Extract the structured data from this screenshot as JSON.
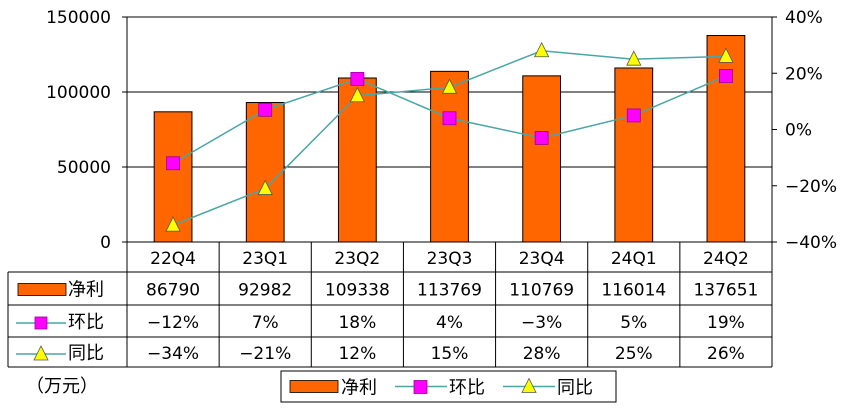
{
  "chart_data": {
    "type": "bar",
    "categories": [
      "22Q4",
      "23Q1",
      "23Q2",
      "23Q3",
      "23Q4",
      "24Q1",
      "24Q2"
    ],
    "series": [
      {
        "name": "净利",
        "type": "bar",
        "axis": "left",
        "color": "#ff6600",
        "values": [
          86790,
          92982,
          109338,
          113769,
          110769,
          116014,
          137651
        ],
        "labels": [
          "86790",
          "92982",
          "109338",
          "113769",
          "110769",
          "116014",
          "137651"
        ]
      },
      {
        "name": "环比",
        "type": "line",
        "axis": "right",
        "color": "#4aa6a6",
        "marker": "square",
        "marker_color": "#ff00ff",
        "values": [
          -12,
          7,
          18,
          4,
          -3,
          5,
          19
        ],
        "labels": [
          "−12%",
          "7%",
          "18%",
          "4%",
          "−3%",
          "5%",
          "19%"
        ]
      },
      {
        "name": "同比",
        "type": "line",
        "axis": "right",
        "color": "#4aa6a6",
        "marker": "triangle",
        "marker_color": "#ffff00",
        "values": [
          -34,
          -21,
          12,
          15,
          28,
          25,
          26
        ],
        "labels": [
          "−34%",
          "−21%",
          "12%",
          "15%",
          "28%",
          "25%",
          "26%"
        ]
      }
    ],
    "ylim_left": [
      0,
      150000
    ],
    "yticks_left": [
      0,
      50000,
      100000,
      150000
    ],
    "ylim_right": [
      -40,
      40
    ],
    "yticks_right": [
      "40%",
      "20%",
      "0%",
      "−20%",
      "−40%"
    ],
    "yticks_right_values": [
      40,
      20,
      0,
      -20,
      -40
    ],
    "grid": true,
    "legend": "bottom-center",
    "legend_items": [
      "净利",
      "环比",
      "同比"
    ],
    "unit_label": "（万元）",
    "has_data_table": true
  }
}
